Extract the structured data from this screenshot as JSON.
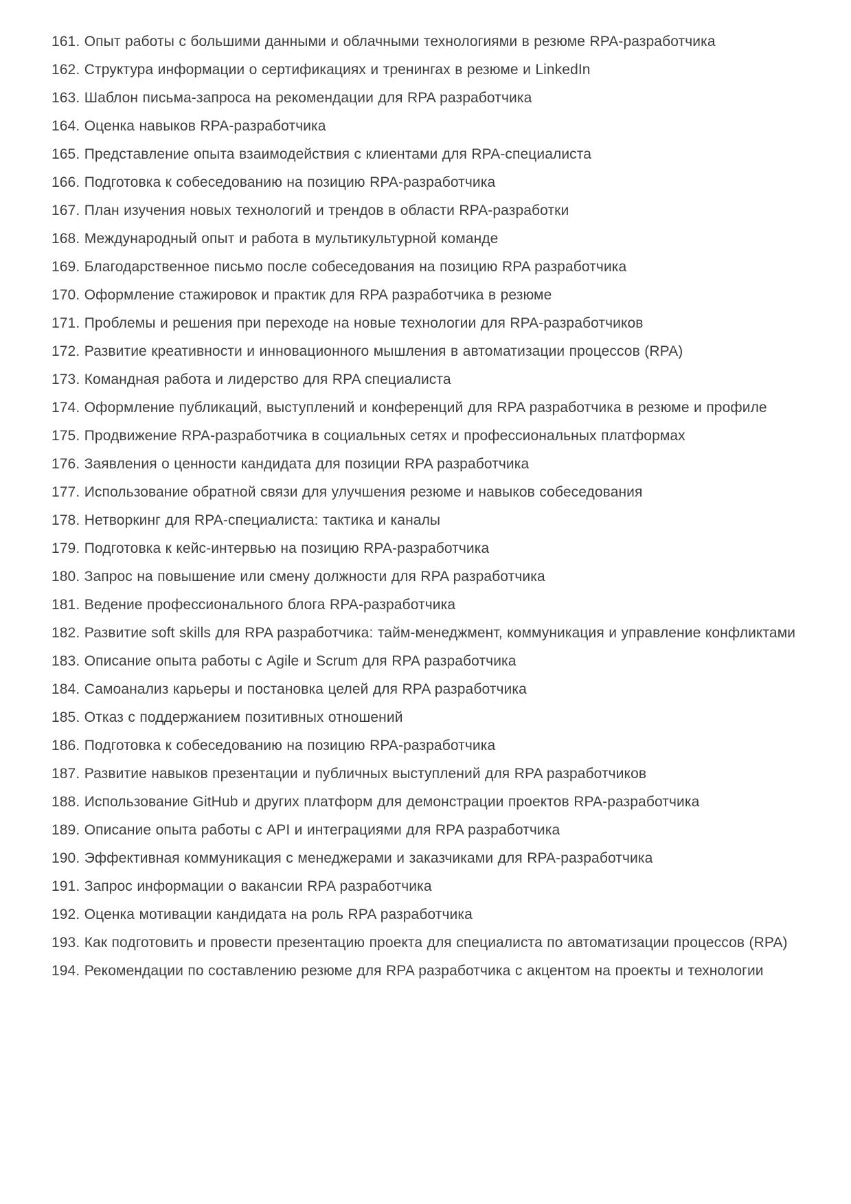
{
  "page": {
    "background_color": "#ffffff",
    "text_color": "#3d3d3d"
  },
  "document": {
    "list_start": 161,
    "list_end": 194,
    "items": [
      {
        "number": "161.",
        "text": "Опыт работы с большими данными и облачными технологиями в резюме RPA-разработчика"
      },
      {
        "number": "162.",
        "text": "Структура информации о сертификациях и тренингах в резюме и LinkedIn"
      },
      {
        "number": "163.",
        "text": "Шаблон письма-запроса на рекомендации для RPA разработчика"
      },
      {
        "number": "164.",
        "text": "Оценка навыков RPA-разработчика"
      },
      {
        "number": "165.",
        "text": "Представление опыта взаимодействия с клиентами для RPA-специалиста"
      },
      {
        "number": "166.",
        "text": "Подготовка к собеседованию на позицию RPA-разработчика"
      },
      {
        "number": "167.",
        "text": "План изучения новых технологий и трендов в области RPA-разработки"
      },
      {
        "number": "168.",
        "text": "Международный опыт и работа в мультикультурной команде"
      },
      {
        "number": "169.",
        "text": "Благодарственное письмо после собеседования на позицию RPA разработчика"
      },
      {
        "number": "170.",
        "text": "Оформление стажировок и практик для RPA разработчика в резюме"
      },
      {
        "number": "171.",
        "text": "Проблемы и решения при переходе на новые технологии для RPA-разработчиков"
      },
      {
        "number": "172.",
        "text": "Развитие креативности и инновационного мышления в автоматизации процессов (RPA)"
      },
      {
        "number": "173.",
        "text": "Командная работа и лидерство для RPA специалиста"
      },
      {
        "number": "174.",
        "text": "Оформление публикаций, выступлений и конференций для RPA разработчика в резюме и профиле"
      },
      {
        "number": "175.",
        "text": "Продвижение RPA-разработчика в социальных сетях и профессиональных платформах"
      },
      {
        "number": "176.",
        "text": "Заявления о ценности кандидата для позиции RPA разработчика"
      },
      {
        "number": "177.",
        "text": "Использование обратной связи для улучшения резюме и навыков собеседования"
      },
      {
        "number": "178.",
        "text": "Нетворкинг для RPA-специалиста: тактика и каналы"
      },
      {
        "number": "179.",
        "text": "Подготовка к кейс-интервью на позицию RPA-разработчика"
      },
      {
        "number": "180.",
        "text": "Запрос на повышение или смену должности для RPA разработчика"
      },
      {
        "number": "181.",
        "text": "Ведение профессионального блога RPA-разработчика"
      },
      {
        "number": "182.",
        "text": "Развитие soft skills для RPA разработчика: тайм-менеджмент, коммуникация и управление конфликтами"
      },
      {
        "number": "183.",
        "text": "Описание опыта работы с Agile и Scrum для RPA разработчика"
      },
      {
        "number": "184.",
        "text": "Самоанализ карьеры и постановка целей для RPA разработчика"
      },
      {
        "number": "185.",
        "text": "Отказ с поддержанием позитивных отношений"
      },
      {
        "number": "186.",
        "text": "Подготовка к собеседованию на позицию RPA-разработчика"
      },
      {
        "number": "187.",
        "text": "Развитие навыков презентации и публичных выступлений для RPA разработчиков"
      },
      {
        "number": "188.",
        "text": "Использование GitHub и других платформ для демонстрации проектов RPA-разработчика"
      },
      {
        "number": "189.",
        "text": "Описание опыта работы с API и интеграциями для RPA разработчика"
      },
      {
        "number": "190.",
        "text": "Эффективная коммуникация с менеджерами и заказчиками для RPA-разработчика"
      },
      {
        "number": "191.",
        "text": "Запрос информации о вакансии RPA разработчика"
      },
      {
        "number": "192.",
        "text": "Оценка мотивации кандидата на роль RPA разработчика"
      },
      {
        "number": "193.",
        "text": "Как подготовить и провести презентацию проекта для специалиста по автоматизации процессов (RPA)"
      },
      {
        "number": "194.",
        "text": "Рекомендации по составлению резюме для RPA разработчика с акцентом на проекты и технологии"
      }
    ]
  }
}
